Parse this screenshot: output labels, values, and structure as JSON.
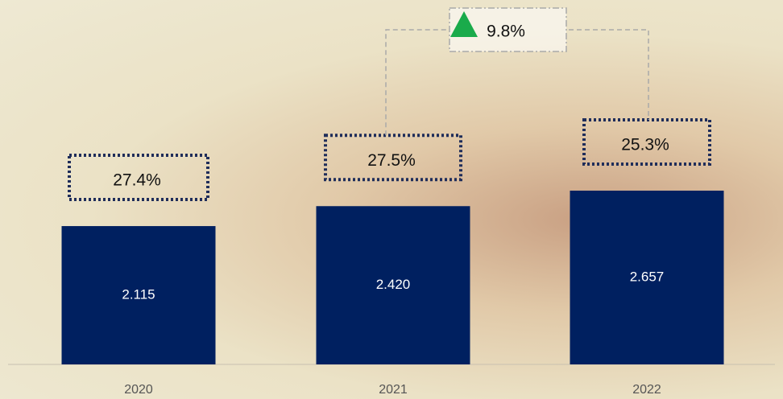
{
  "chart_data": {
    "type": "bar",
    "categories": [
      "2020",
      "2021",
      "2022"
    ],
    "values": [
      2.115,
      2.42,
      2.657
    ],
    "value_labels": [
      "2.115",
      "2.420",
      "2.657"
    ],
    "color": "#002060",
    "margins": {
      "values": [
        27.4,
        27.5,
        25.3
      ],
      "value_labels": [
        "27.4%",
        "27.5%",
        "25.3%"
      ]
    },
    "growth": {
      "value": 9.8,
      "label": "9.8%",
      "color": "#1aab4b"
    }
  }
}
